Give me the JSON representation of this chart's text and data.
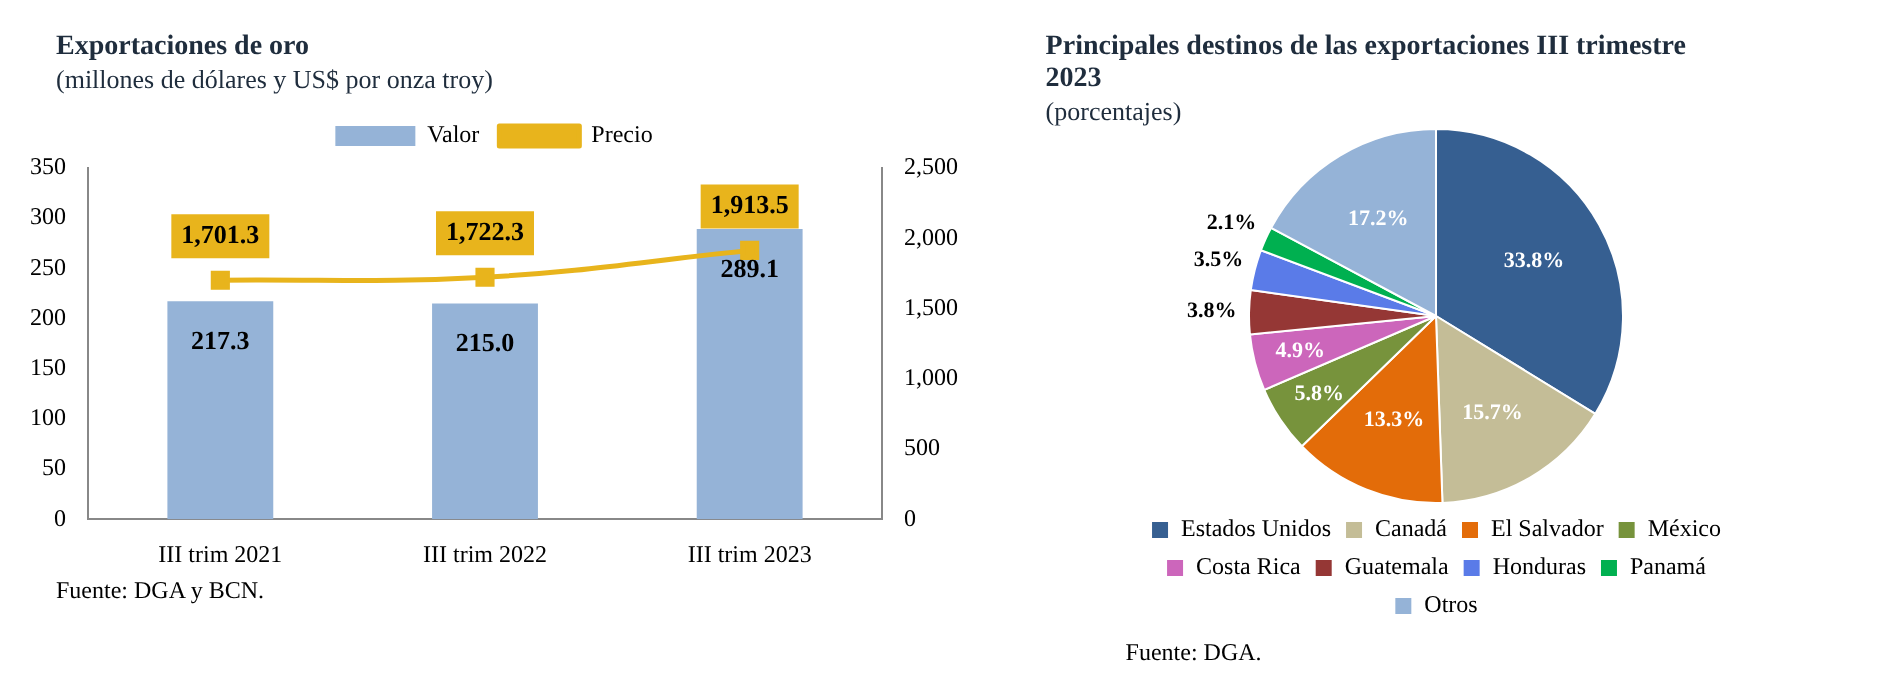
{
  "chart_data": [
    {
      "type": "bar",
      "title": "Exportaciones de oro",
      "subtitle": "(millones de dólares y US$ por onza troy)",
      "categories": [
        "III trim 2021",
        "III trim 2022",
        "III trim 2023"
      ],
      "series": [
        {
          "name": "Valor",
          "type": "bar",
          "color": "#95b3d7",
          "values": [
            217.3,
            215.0,
            289.1
          ],
          "value_labels": [
            "217.3",
            "215.0",
            "289.1"
          ]
        },
        {
          "name": "Precio",
          "type": "line",
          "axis": "y2",
          "color": "#e8b41c",
          "values": [
            1701.3,
            1722.3,
            1913.5
          ],
          "value_labels": [
            "1,701.3",
            "1,722.3",
            "1,913.5"
          ]
        }
      ],
      "ylim": [
        0,
        350
      ],
      "yticks": [
        0,
        50,
        100,
        150,
        200,
        250,
        300,
        350
      ],
      "y2lim": [
        0,
        2500
      ],
      "y2ticks": [
        {
          "value": 0,
          "label": "0"
        },
        {
          "value": 500,
          "label": "500"
        },
        {
          "value": 1000,
          "label": "1,000"
        },
        {
          "value": 1500,
          "label": "1,500"
        },
        {
          "value": 2000,
          "label": "2,000"
        },
        {
          "value": 2500,
          "label": "2,500"
        }
      ],
      "grid": false,
      "legend": "top",
      "marker": "square",
      "annotations": [
        "Fuente: DGA y BCN."
      ]
    },
    {
      "type": "pie",
      "title": "Principales destinos de las exportaciones III trimestre 2023",
      "subtitle": "(porcentajes)",
      "categories": [
        "Estados Unidos",
        "Canadá",
        "El Salvador",
        "México",
        "Costa Rica",
        "Guatemala",
        "Honduras",
        "Panamá",
        "Otros"
      ],
      "values": [
        33.8,
        15.7,
        13.3,
        5.8,
        4.9,
        3.8,
        3.5,
        2.1,
        17.2
      ],
      "value_labels": [
        "33.8%",
        "15.7%",
        "13.3%",
        "5.8%",
        "4.9%",
        "3.8%",
        "3.5%",
        "2.1%",
        "17.2%"
      ],
      "colors": [
        "#365f91",
        "#c4bd97",
        "#e36c09",
        "#77933c",
        "#cc66bb",
        "#953735",
        "#5a7be8",
        "#00b050",
        "#95b3d7"
      ],
      "legend": "bottom",
      "annotations": [
        "Fuente: DGA."
      ]
    }
  ]
}
